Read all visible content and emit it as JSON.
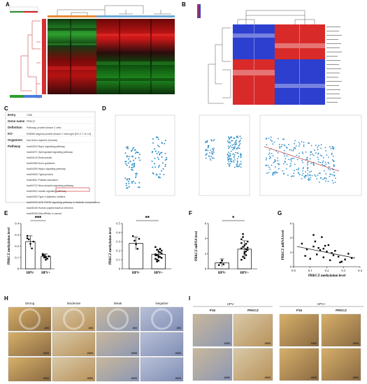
{
  "panels": {
    "A": "A",
    "B": "B",
    "C": "C",
    "D": "D",
    "E": "E",
    "F": "F",
    "G": "G",
    "H": "H",
    "I": "I"
  },
  "panel_C": {
    "rows": [
      {
        "key": "Entry",
        "value": "7266"
      },
      {
        "key": "Gene name",
        "value": "PRKCZ"
      },
      {
        "key": "Definition",
        "value": "Pathway, protein kinase C zeta"
      },
      {
        "key": "KO",
        "value": "K06069 atypical protein kinase C zeta type [EC:2.7.11.13]"
      },
      {
        "key": "Organism",
        "value": "hsa Homo sapiens (human)"
      },
      {
        "key": "Pathway",
        "value": "hsa04015 Rap1 signaling pathway"
      }
    ],
    "pathways": [
      "hsa04015 Rap1 signaling pathway",
      "hsa04071 Sphingolipid signaling pathway",
      "hsa04144 Endocytosis",
      "hsa04360 Axon guidance",
      "hsa04390 Hippo signaling pathway",
      "hsa04530 Tight junction",
      "hsa04611 Platelet activation",
      "hsa04722 Neurotrophin signaling pathway",
      "hsa04910 Insulin signaling pathway",
      "hsa04930 Type II diabetes mellitus",
      "hsa04933 AGE-RAGE signaling pathway in diabetic complications",
      "hsa05165 Human papillomavirus infection",
      "hsa05206 MicroRNAs in cancer"
    ]
  },
  "panel_E": {
    "left_ylabel": "PRKCZ methylation level",
    "right_ylabel": "PRKCZ methylation level",
    "left_stars": "***",
    "right_stars": "**",
    "categories": [
      "HPV-",
      "HPV+"
    ]
  },
  "panel_F": {
    "ylabel": "PRKCZ mRNA level",
    "stars": "*",
    "categories": [
      "HPV-",
      "HPV+"
    ]
  },
  "panel_G": {
    "xlabel": "PRKCZ methylation level",
    "ylabel": "PRKCZ mRNA level"
  },
  "panel_H": {
    "columns": [
      "Strong",
      "Moderate",
      "Weak",
      "Negative"
    ],
    "scales": [
      "40X",
      "200X",
      "400X"
    ]
  },
  "panel_I": {
    "groups": [
      "HPV-",
      "HPV+"
    ],
    "stains": [
      "P16",
      "PRKCZ"
    ],
    "scales": [
      "200X",
      "400X"
    ]
  },
  "chart_data": [
    {
      "type": "bar",
      "title": "",
      "ylabel": "PRKCZ methylation level",
      "categories": [
        "HPV-",
        "HPV+"
      ],
      "values": [
        0.24,
        0.11
      ],
      "errors": [
        0.05,
        0.02
      ],
      "ylim": [
        0,
        0.4
      ],
      "yticks": [
        0.0,
        0.1,
        0.2,
        0.3,
        0.4
      ],
      "points": [
        [
          0.29,
          0.26,
          0.22,
          0.18,
          0.24,
          0.27
        ],
        [
          0.13,
          0.12,
          0.1,
          0.09,
          0.11,
          0.12,
          0.1,
          0.08
        ]
      ]
    },
    {
      "type": "bar",
      "title": "",
      "ylabel": "PRKCZ methylation level",
      "categories": [
        "HPV-",
        "HPV+"
      ],
      "values": [
        0.28,
        0.16
      ],
      "errors": [
        0.07,
        0.05
      ],
      "ylim": [
        0,
        0.5
      ],
      "yticks": [
        0.0,
        0.1,
        0.2,
        0.3,
        0.4,
        0.5
      ],
      "points": [
        [
          0.36,
          0.31,
          0.27,
          0.22,
          0.33
        ],
        [
          0.24,
          0.21,
          0.19,
          0.18,
          0.17,
          0.16,
          0.15,
          0.14,
          0.13,
          0.12,
          0.11,
          0.1,
          0.09,
          0.22,
          0.2,
          0.15,
          0.08,
          0.13
        ]
      ]
    },
    {
      "type": "bar",
      "title": "",
      "ylabel": "PRKCZ mRNA level",
      "categories": [
        "HPV-",
        "HPV+"
      ],
      "values": [
        0.8,
        2.6
      ],
      "errors": [
        0.5,
        1.1
      ],
      "ylim": [
        0,
        6
      ],
      "yticks": [
        0,
        2,
        4,
        6
      ],
      "points": [
        [
          0.5,
          0.8,
          1.1,
          0.6
        ],
        [
          1.2,
          1.6,
          2.0,
          2.3,
          2.5,
          2.7,
          2.9,
          3.1,
          3.3,
          3.6,
          3.9,
          4.2,
          2.2,
          1.8,
          2.8,
          3.4,
          4.6,
          1.4,
          2.6
        ]
      ]
    },
    {
      "type": "scatter",
      "title": "",
      "xlabel": "PRKCZ methylation level",
      "ylabel": "PRKCZ mRNA level",
      "xlim": [
        0,
        0.4
      ],
      "ylim": [
        0,
        6
      ],
      "xticks": [
        0.0,
        0.1,
        0.2,
        0.3,
        0.4
      ],
      "yticks": [
        0,
        2,
        4,
        6
      ],
      "x": [
        0.05,
        0.07,
        0.08,
        0.1,
        0.12,
        0.13,
        0.14,
        0.15,
        0.16,
        0.17,
        0.18,
        0.19,
        0.2,
        0.21,
        0.22,
        0.24,
        0.25,
        0.27,
        0.29,
        0.31,
        0.33,
        0.35,
        0.12,
        0.18,
        0.23,
        0.28
      ],
      "y": [
        3.2,
        1.5,
        2.4,
        1.1,
        2.8,
        3.5,
        1.7,
        2.6,
        2.3,
        4.1,
        1.3,
        2.9,
        2.1,
        3.0,
        0.9,
        1.6,
        2.2,
        1.4,
        0.7,
        1.0,
        1.8,
        1.2,
        4.4,
        2.5,
        1.9,
        0.6
      ],
      "trend": [
        [
          0.02,
          2.8
        ],
        [
          0.37,
          1.2
        ]
      ]
    }
  ]
}
